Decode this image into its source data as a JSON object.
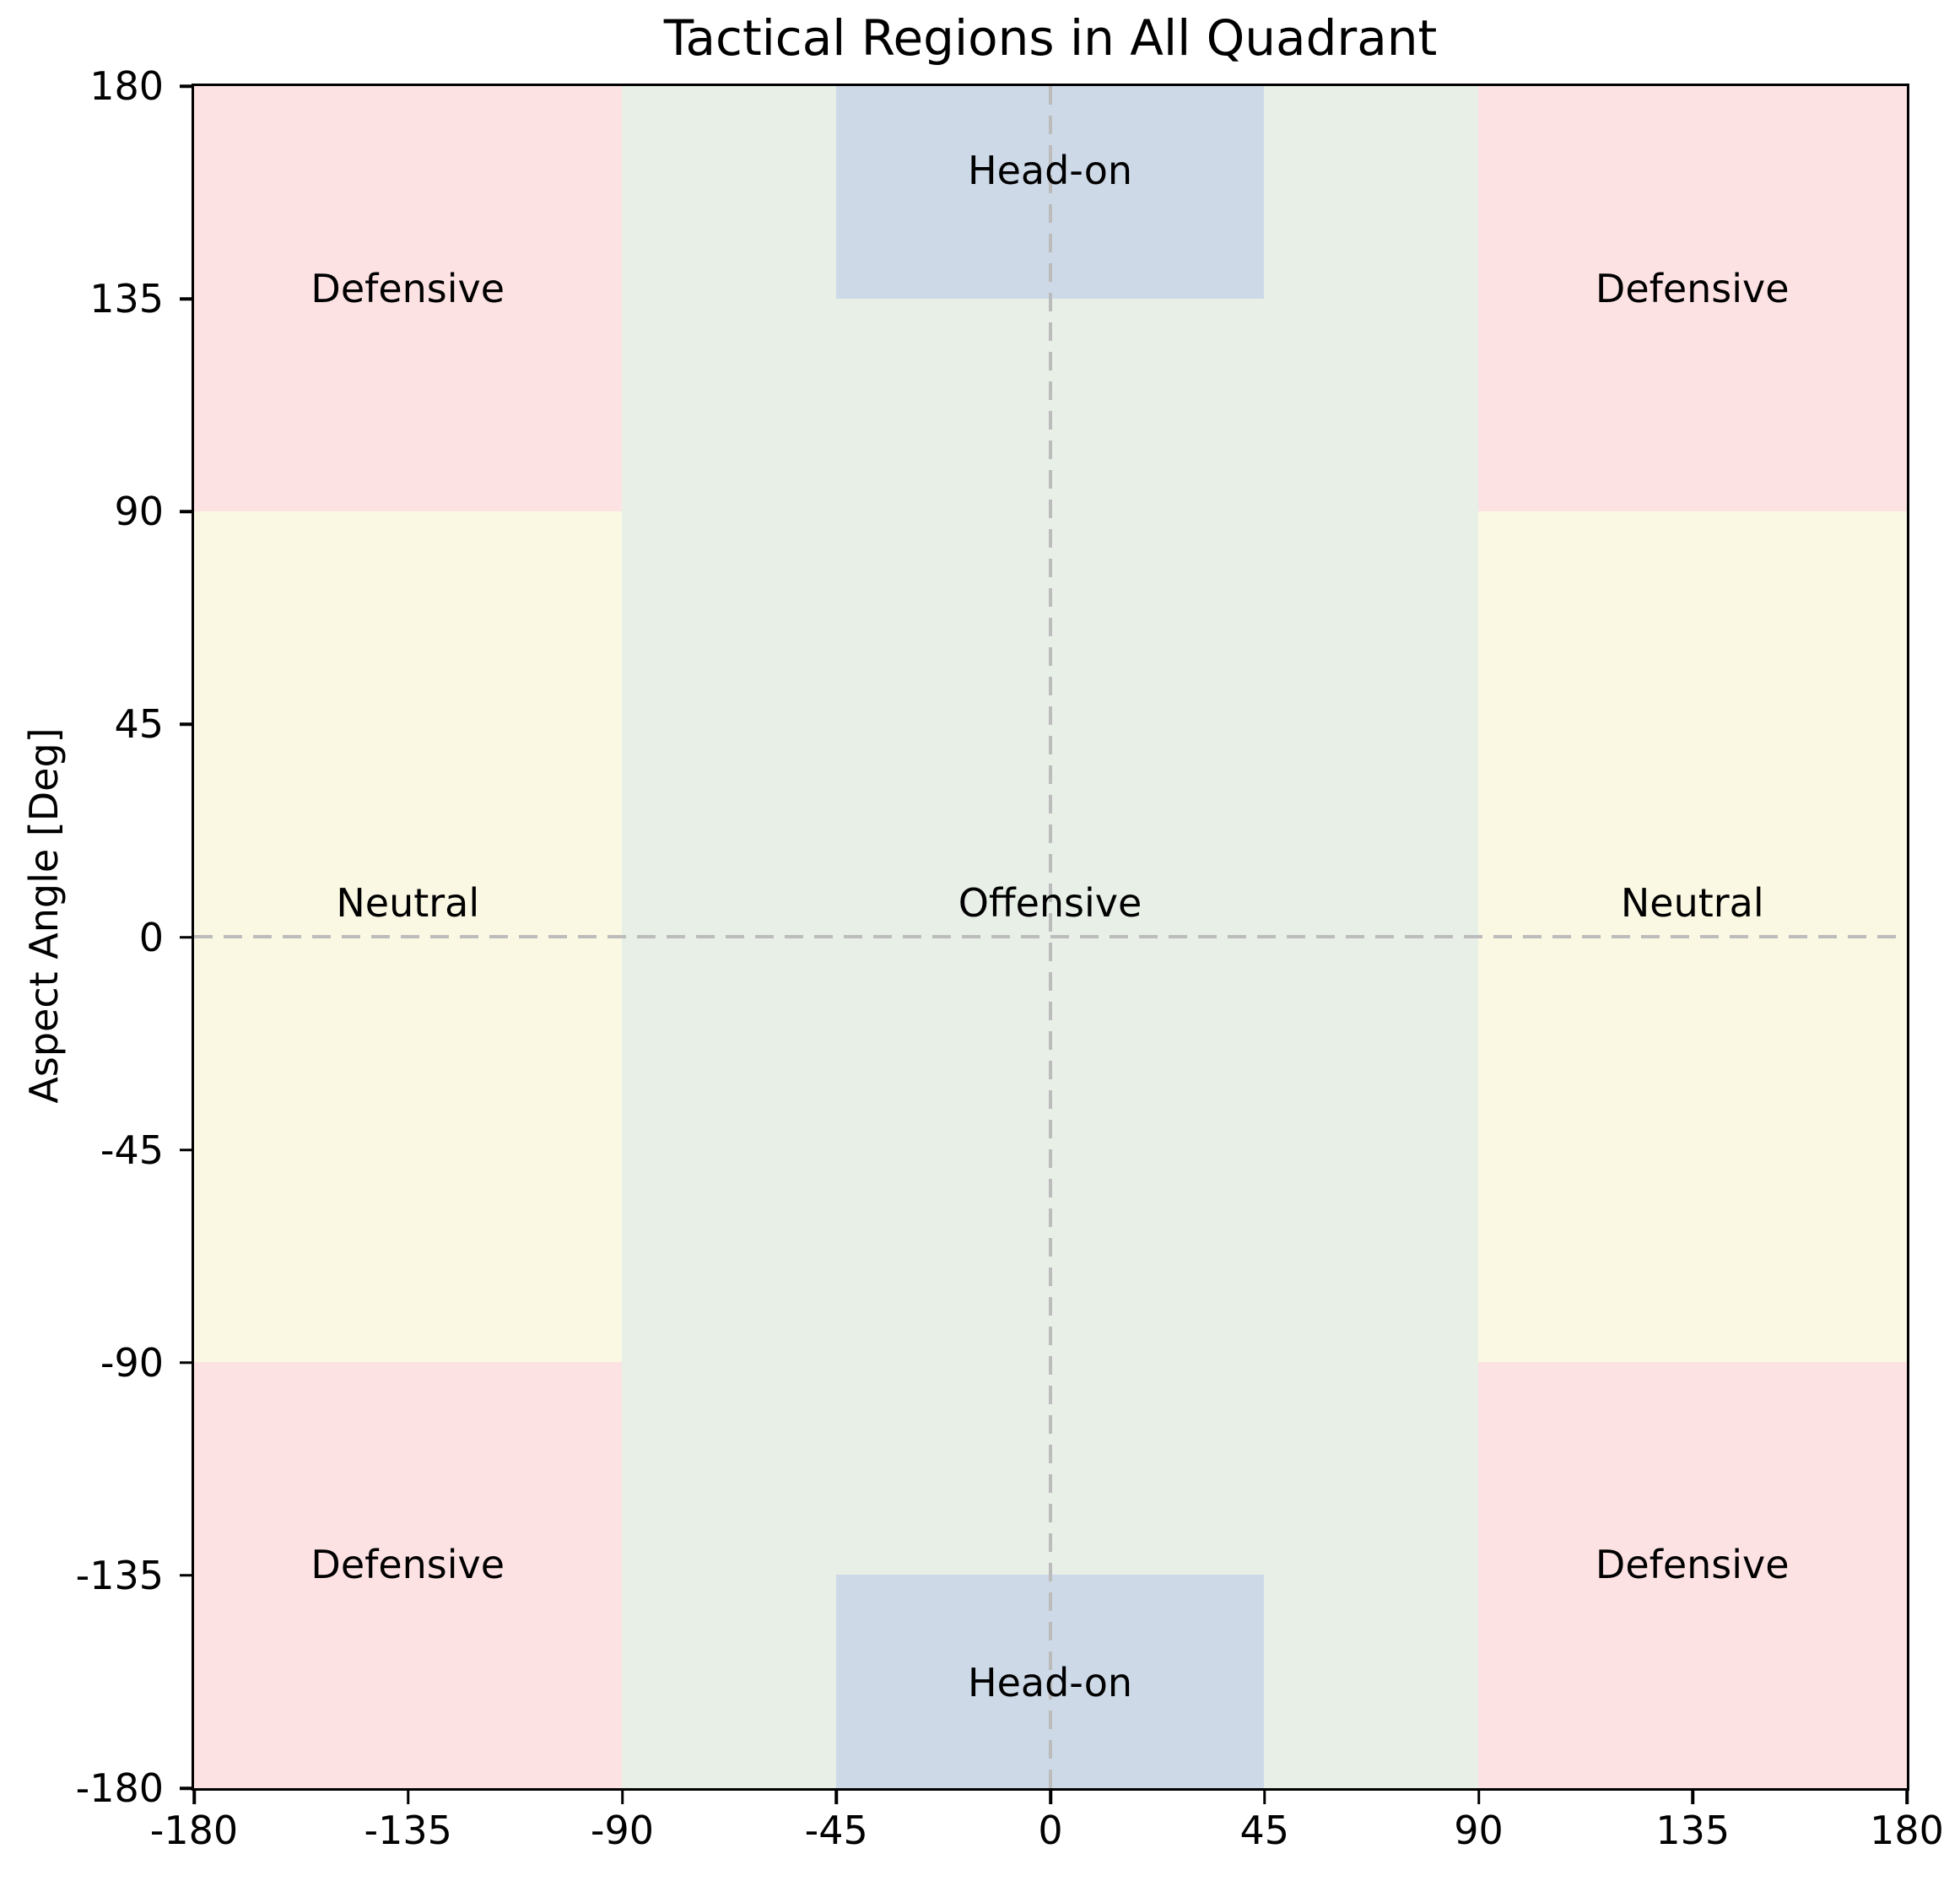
{
  "figure": {
    "background": "#ffffff",
    "text_color": "#000000",
    "spine_color": "#000000"
  },
  "chart_data": {
    "type": "heatmap",
    "subtype": "categorical-region-map",
    "title": "Tactical Regions in All Quadrant",
    "xlabel": "",
    "ylabel": "Aspect Angle [Deg]",
    "xlim": [
      -180,
      180
    ],
    "ylim": [
      -180,
      180
    ],
    "grid": false,
    "legend": "none",
    "xticks": [
      -180,
      -135,
      -90,
      -45,
      0,
      45,
      90,
      135,
      180
    ],
    "yticks": [
      180,
      135,
      90,
      45,
      0,
      -45,
      -90,
      -135,
      -180
    ],
    "colors": {
      "defensive": "#fde2e4",
      "neutral": "#faf8e3",
      "offensive": "#e7efe6",
      "head_on": "#cdd9e7",
      "zero_line": "#bcbcbc"
    },
    "regions": [
      {
        "name": "defensive-upper-left",
        "category": "Defensive",
        "x": [
          -180,
          -90
        ],
        "y": [
          90,
          180
        ],
        "color_key": "defensive"
      },
      {
        "name": "defensive-upper-right",
        "category": "Defensive",
        "x": [
          90,
          180
        ],
        "y": [
          90,
          180
        ],
        "color_key": "defensive"
      },
      {
        "name": "defensive-lower-left",
        "category": "Defensive",
        "x": [
          -180,
          -90
        ],
        "y": [
          -180,
          -90
        ],
        "color_key": "defensive"
      },
      {
        "name": "defensive-lower-right",
        "category": "Defensive",
        "x": [
          90,
          180
        ],
        "y": [
          -180,
          -90
        ],
        "color_key": "defensive"
      },
      {
        "name": "neutral-left",
        "category": "Neutral",
        "x": [
          -180,
          -90
        ],
        "y": [
          -90,
          90
        ],
        "color_key": "neutral"
      },
      {
        "name": "neutral-right",
        "category": "Neutral",
        "x": [
          90,
          180
        ],
        "y": [
          -90,
          90
        ],
        "color_key": "neutral"
      },
      {
        "name": "offensive-center",
        "category": "Offensive",
        "x": [
          -90,
          90
        ],
        "y": [
          -180,
          180
        ],
        "color_key": "offensive"
      },
      {
        "name": "head-on-top",
        "category": "Head-on",
        "x": [
          -45,
          45
        ],
        "y": [
          135,
          180
        ],
        "color_key": "head_on"
      },
      {
        "name": "head-on-bottom",
        "category": "Head-on",
        "x": [
          -45,
          45
        ],
        "y": [
          -180,
          -135
        ],
        "color_key": "head_on"
      }
    ],
    "labels": [
      {
        "text": "Head-on",
        "x": 0,
        "y": 160
      },
      {
        "text": "Defensive",
        "x": -135,
        "y": 135
      },
      {
        "text": "Defensive",
        "x": 135,
        "y": 135
      },
      {
        "text": "Neutral",
        "x": -135,
        "y": 5
      },
      {
        "text": "Offensive",
        "x": 0,
        "y": 5
      },
      {
        "text": "Neutral",
        "x": 135,
        "y": 5
      },
      {
        "text": "Defensive",
        "x": -135,
        "y": -135
      },
      {
        "text": "Defensive",
        "x": 135,
        "y": -135
      },
      {
        "text": "Head-on",
        "x": 0,
        "y": -160
      }
    ],
    "reference_lines": [
      {
        "name": "zero-line-vertical",
        "axis": "x",
        "value": 0,
        "style": "dashed"
      },
      {
        "name": "zero-line-horizontal",
        "axis": "y",
        "value": 0,
        "style": "dashed"
      }
    ]
  }
}
